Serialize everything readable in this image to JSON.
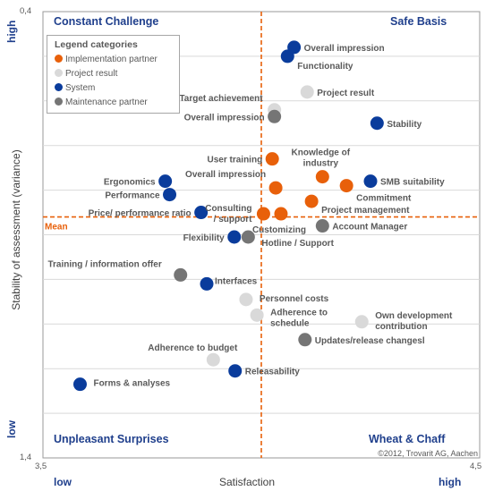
{
  "chart_data": {
    "type": "scatter",
    "xlabel": "Satisfaction",
    "ylabel": "Stability of assessment (variance)",
    "xlim": [
      3.5,
      4.5
    ],
    "ylim": [
      1.4,
      0.4
    ],
    "x_tick_labels": [
      "3,5",
      "4,5"
    ],
    "y_tick_labels": [
      "0,4",
      "1,4"
    ],
    "x_low": "low",
    "x_high": "high",
    "y_low": "low",
    "y_high": "high",
    "mean_label": "Mean",
    "mean_x": 4.0,
    "mean_y": 0.86,
    "quadrants": {
      "top_left": "Constant Challenge",
      "top_right": "Safe Basis",
      "bottom_left": "Unpleasant Surprises",
      "bottom_right": "Wheat & Chaff"
    },
    "copyright": "©2012, Trovarit AG, Aachen",
    "legend": {
      "title": "Legend categories",
      "items": [
        {
          "name": "Implementation partner",
          "color": "#e8600a"
        },
        {
          "name": "Project result",
          "color": "#d9d9d9"
        },
        {
          "name": "System",
          "color": "#0a3c9c"
        },
        {
          "name": "Maintenance partner",
          "color": "#757575"
        }
      ]
    },
    "series": [
      {
        "name": "Implementation partner",
        "color": "#e8600a",
        "points": [
          {
            "label": "User training",
            "x": 4.025,
            "y": 0.73
          },
          {
            "label": "Overall impression",
            "x": 4.033,
            "y": 0.795
          },
          {
            "label": "Knowledge of industry",
            "x": 4.14,
            "y": 0.77
          },
          {
            "label": "Commitment",
            "x": 4.195,
            "y": 0.79
          },
          {
            "label": "Project management",
            "x": 4.115,
            "y": 0.825
          },
          {
            "label": "Consulting / support",
            "x": 4.005,
            "y": 0.853
          },
          {
            "label": "Customizing",
            "x": 4.045,
            "y": 0.853
          }
        ]
      },
      {
        "name": "Project result",
        "color": "#d9d9d9",
        "points": [
          {
            "label": "Project  result",
            "x": 4.105,
            "y": 0.58
          },
          {
            "label": "Target achievement",
            "x": 4.03,
            "y": 0.62
          },
          {
            "label": "Personnel costs",
            "x": 3.965,
            "y": 1.045
          },
          {
            "label": "Adherence to schedule",
            "x": 3.99,
            "y": 1.08
          },
          {
            "label": "Own development contribution",
            "x": 4.23,
            "y": 1.095
          },
          {
            "label": "Adherence to budget",
            "x": 3.89,
            "y": 1.18
          }
        ]
      },
      {
        "name": "System",
        "color": "#0a3c9c",
        "points": [
          {
            "label": "Overall impression",
            "x": 4.075,
            "y": 0.48
          },
          {
            "label": "Functionality",
            "x": 4.06,
            "y": 0.5
          },
          {
            "label": "Stability",
            "x": 4.265,
            "y": 0.65
          },
          {
            "label": "SMB suitability",
            "x": 4.25,
            "y": 0.78
          },
          {
            "label": "Ergonomics",
            "x": 3.78,
            "y": 0.78
          },
          {
            "label": "Performance",
            "x": 3.79,
            "y": 0.81
          },
          {
            "label": "Price/ performance ratio",
            "x": 3.862,
            "y": 0.85
          },
          {
            "label": "Flexibility",
            "x": 3.938,
            "y": 0.905
          },
          {
            "label": "Interfaces",
            "x": 3.875,
            "y": 1.01
          },
          {
            "label": "Releasability",
            "x": 3.94,
            "y": 1.205
          },
          {
            "label": "Forms & analyses",
            "x": 3.585,
            "y": 1.235
          }
        ]
      },
      {
        "name": "Maintenance partner",
        "color": "#757575",
        "points": [
          {
            "label": "Overall impression",
            "x": 4.03,
            "y": 0.635
          },
          {
            "label": "Account Manager",
            "x": 4.14,
            "y": 0.88
          },
          {
            "label": "Hotline / Support",
            "x": 3.97,
            "y": 0.905
          },
          {
            "label": "Training / information offer",
            "x": 3.815,
            "y": 0.99
          },
          {
            "label": "Updates/release changesl",
            "x": 4.1,
            "y": 1.135
          }
        ]
      }
    ]
  }
}
